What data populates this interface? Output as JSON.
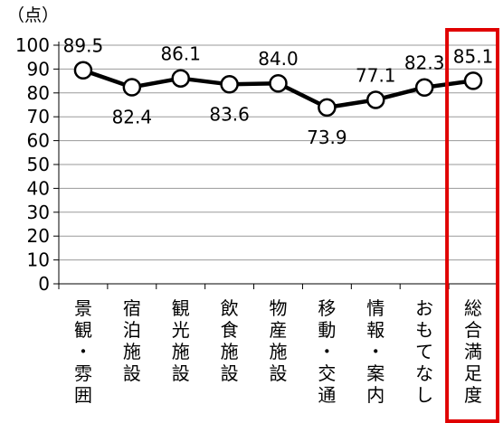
{
  "chart_data": {
    "type": "line",
    "unit_label": "（点）",
    "categories": [
      "景観・雰囲気",
      "宿泊施設",
      "観光施設",
      "飲食施設",
      "物産施設",
      "移動・交通",
      "情報・案内",
      "おもてなし",
      "総合満足度"
    ],
    "values": [
      89.5,
      82.4,
      86.1,
      83.6,
      84.0,
      73.9,
      77.1,
      82.3,
      85.1
    ],
    "data_labels": [
      "89.5",
      "82.4",
      "86.1",
      "83.6",
      "84.0",
      "73.9",
      "77.1",
      "82.3",
      "85.1"
    ],
    "yticks": [
      "0",
      "10",
      "20",
      "30",
      "40",
      "50",
      "60",
      "70",
      "80",
      "90",
      "100"
    ],
    "ylim": [
      0,
      100
    ],
    "grid": true,
    "highlight_category": "総合満足度",
    "colors": {
      "line": "#000000",
      "grid": "#9a9a9a",
      "highlight": "#e00000",
      "marker_fill": "#ffffff"
    }
  }
}
